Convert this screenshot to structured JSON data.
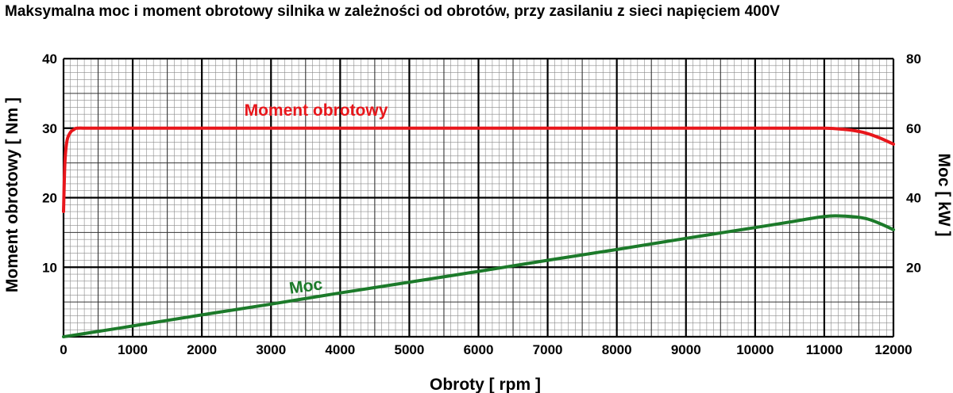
{
  "chart_data": {
    "type": "line",
    "title": "Maksymalna moc i moment obrotowy silnika w zależności od obrotów, przy zasilaniu z sieci napięciem 400V",
    "xlabel": "Obroty [ rpm ]",
    "ylabel_left": "Moment obrotowy [ Nm ]",
    "ylabel_right": "Moc [ kW ]",
    "xlim": [
      0,
      12000
    ],
    "ylim_left": [
      0,
      40
    ],
    "ylim_right": [
      0,
      80
    ],
    "x_ticks": [
      "0",
      "1000",
      "2000",
      "3000",
      "4000",
      "5000",
      "6000",
      "7000",
      "8000",
      "9000",
      "10000",
      "11000",
      "12000"
    ],
    "y_ticks_left": [
      "10",
      "20",
      "30",
      "40"
    ],
    "y_ticks_right": [
      "20",
      "40",
      "60",
      "80"
    ],
    "grid": true,
    "series": [
      {
        "name": "Moment obrotowy",
        "axis": "left",
        "color": "#e8161b",
        "x": [
          0,
          20,
          50,
          100,
          150,
          200,
          400,
          1000,
          3000,
          6000,
          9000,
          10500,
          11000,
          11200,
          11400,
          11600,
          11800,
          12000
        ],
        "y": [
          18.0,
          25.0,
          28.2,
          29.4,
          29.8,
          30.0,
          30.0,
          30.0,
          30.0,
          30.0,
          30.0,
          30.0,
          30.0,
          29.9,
          29.7,
          29.3,
          28.6,
          27.7
        ]
      },
      {
        "name": "Moc",
        "axis": "right",
        "color": "#1c7a2a",
        "x": [
          0,
          200,
          1000,
          2000,
          3000,
          4000,
          5000,
          6000,
          7000,
          8000,
          9000,
          10000,
          10500,
          11000,
          11300,
          11600,
          11800,
          12000
        ],
        "y": [
          0.0,
          0.6,
          3.1,
          6.3,
          9.4,
          12.6,
          15.7,
          18.8,
          22.0,
          25.1,
          28.3,
          31.4,
          33.0,
          34.6,
          34.7,
          34.0,
          32.6,
          30.8
        ]
      }
    ]
  }
}
